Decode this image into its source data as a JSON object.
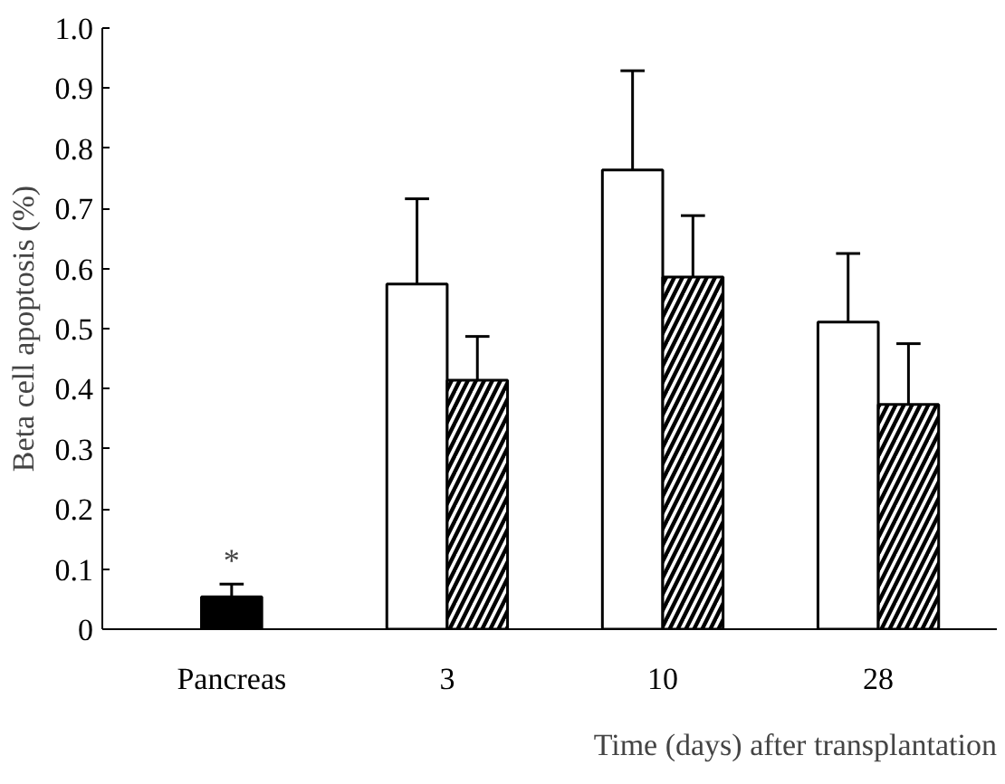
{
  "chart_data": {
    "type": "bar",
    "ylabel": "Beta cell apoptosis (%)",
    "xlabel": "Time (days) after transplantation",
    "categories": [
      "Pancreas",
      "3",
      "10",
      "28"
    ],
    "series": [
      {
        "color": "#000000",
        "values": [
          0.054,
          null,
          null,
          null
        ],
        "errors": [
          [
            0.054,
            0.075
          ],
          null,
          null,
          null
        ]
      },
      {
        "color": "#ffffff",
        "values": [
          null,
          0.574,
          0.764,
          0.511
        ],
        "errors": [
          null,
          [
            0.574,
            0.716
          ],
          [
            0.764,
            0.929
          ],
          [
            0.511,
            0.625
          ]
        ]
      },
      {
        "color": "#ffffff",
        "values": [
          null,
          0.414,
          0.586,
          0.374
        ],
        "errors": [
          null,
          [
            0.414,
            0.487
          ],
          [
            0.586,
            0.688
          ],
          [
            0.374,
            0.475
          ]
        ]
      }
    ],
    "annotations": [
      {
        "text": "*",
        "x": "Pancreas",
        "y": 0.085
      }
    ],
    "ylim": [
      0,
      1.0
    ],
    "yticks": [
      0,
      0.1,
      0.2,
      0.3,
      0.4,
      0.5,
      0.6,
      0.7,
      0.8,
      0.9,
      {
        "value": 1.0,
        "label": "1.0"
      }
    ],
    "grid": false
  }
}
